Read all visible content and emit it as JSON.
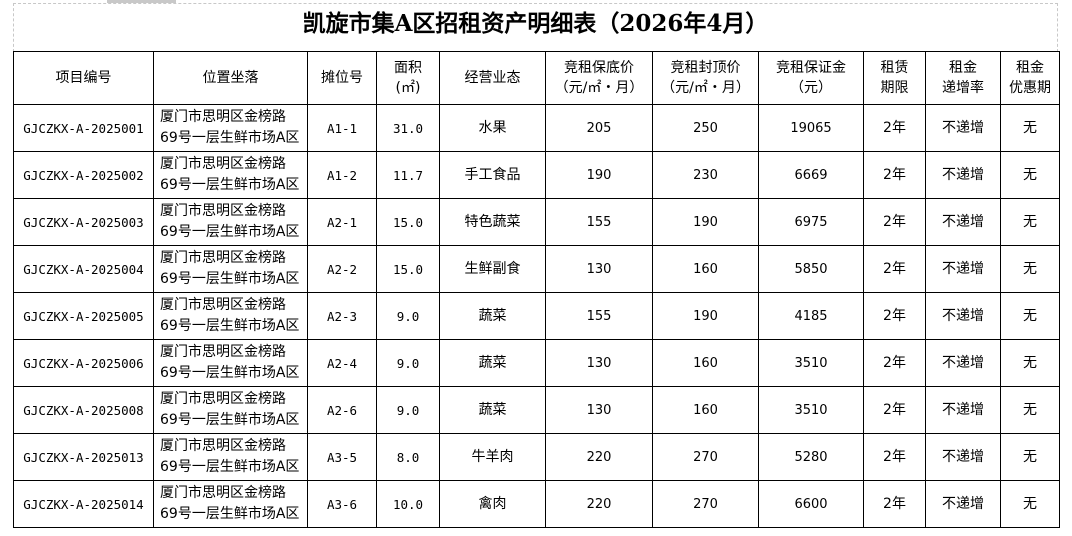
{
  "title": "凯旋市集A区招租资产明细表（2026年4月）",
  "headers": [
    [
      "项目编号"
    ],
    [
      "位置坐落"
    ],
    [
      "摊位号"
    ],
    [
      "面积",
      "(㎡)"
    ],
    [
      "经营业态"
    ],
    [
      "竞租保底价",
      "（元/㎡・月）"
    ],
    [
      "竞租封顶价",
      "（元/㎡・月）"
    ],
    [
      "竞租保证金",
      "（元）"
    ],
    [
      "租赁",
      "期限"
    ],
    [
      "租金",
      "递增率"
    ],
    [
      "租金",
      "优惠期"
    ]
  ],
  "rows": [
    {
      "id": "GJCZKX-A-2025001",
      "loc1": "厦门市思明区金榜路",
      "loc2": "69号一层生鲜市场A区",
      "stall": "A1-1",
      "area": "31.0",
      "biz": "水果",
      "floor": "205",
      "cap": "250",
      "deposit": "19065",
      "term": "2年",
      "increase": "不递增",
      "discount": "无"
    },
    {
      "id": "GJCZKX-A-2025002",
      "loc1": "厦门市思明区金榜路",
      "loc2": "69号一层生鲜市场A区",
      "stall": "A1-2",
      "area": "11.7",
      "biz": "手工食品",
      "floor": "190",
      "cap": "230",
      "deposit": "6669",
      "term": "2年",
      "increase": "不递增",
      "discount": "无"
    },
    {
      "id": "GJCZKX-A-2025003",
      "loc1": "厦门市思明区金榜路",
      "loc2": "69号一层生鲜市场A区",
      "stall": "A2-1",
      "area": "15.0",
      "biz": "特色蔬菜",
      "floor": "155",
      "cap": "190",
      "deposit": "6975",
      "term": "2年",
      "increase": "不递增",
      "discount": "无"
    },
    {
      "id": "GJCZKX-A-2025004",
      "loc1": "厦门市思明区金榜路",
      "loc2": "69号一层生鲜市场A区",
      "stall": "A2-2",
      "area": "15.0",
      "biz": "生鲜副食",
      "floor": "130",
      "cap": "160",
      "deposit": "5850",
      "term": "2年",
      "increase": "不递增",
      "discount": "无"
    },
    {
      "id": "GJCZKX-A-2025005",
      "loc1": "厦门市思明区金榜路",
      "loc2": "69号一层生鲜市场A区",
      "stall": "A2-3",
      "area": "9.0",
      "biz": "蔬菜",
      "floor": "155",
      "cap": "190",
      "deposit": "4185",
      "term": "2年",
      "increase": "不递增",
      "discount": "无"
    },
    {
      "id": "GJCZKX-A-2025006",
      "loc1": "厦门市思明区金榜路",
      "loc2": "69号一层生鲜市场A区",
      "stall": "A2-4",
      "area": "9.0",
      "biz": "蔬菜",
      "floor": "130",
      "cap": "160",
      "deposit": "3510",
      "term": "2年",
      "increase": "不递增",
      "discount": "无"
    },
    {
      "id": "GJCZKX-A-2025008",
      "loc1": "厦门市思明区金榜路",
      "loc2": "69号一层生鲜市场A区",
      "stall": "A2-6",
      "area": "9.0",
      "biz": "蔬菜",
      "floor": "130",
      "cap": "160",
      "deposit": "3510",
      "term": "2年",
      "increase": "不递增",
      "discount": "无"
    },
    {
      "id": "GJCZKX-A-2025013",
      "loc1": "厦门市思明区金榜路",
      "loc2": "69号一层生鲜市场A区",
      "stall": "A3-5",
      "area": "8.0",
      "biz": "牛羊肉",
      "floor": "220",
      "cap": "270",
      "deposit": "5280",
      "term": "2年",
      "increase": "不递增",
      "discount": "无"
    },
    {
      "id": "GJCZKX-A-2025014",
      "loc1": "厦门市思明区金榜路",
      "loc2": "69号一层生鲜市场A区",
      "stall": "A3-6",
      "area": "10.0",
      "biz": "禽肉",
      "floor": "220",
      "cap": "270",
      "deposit": "6600",
      "term": "2年",
      "increase": "不递增",
      "discount": "无"
    }
  ]
}
